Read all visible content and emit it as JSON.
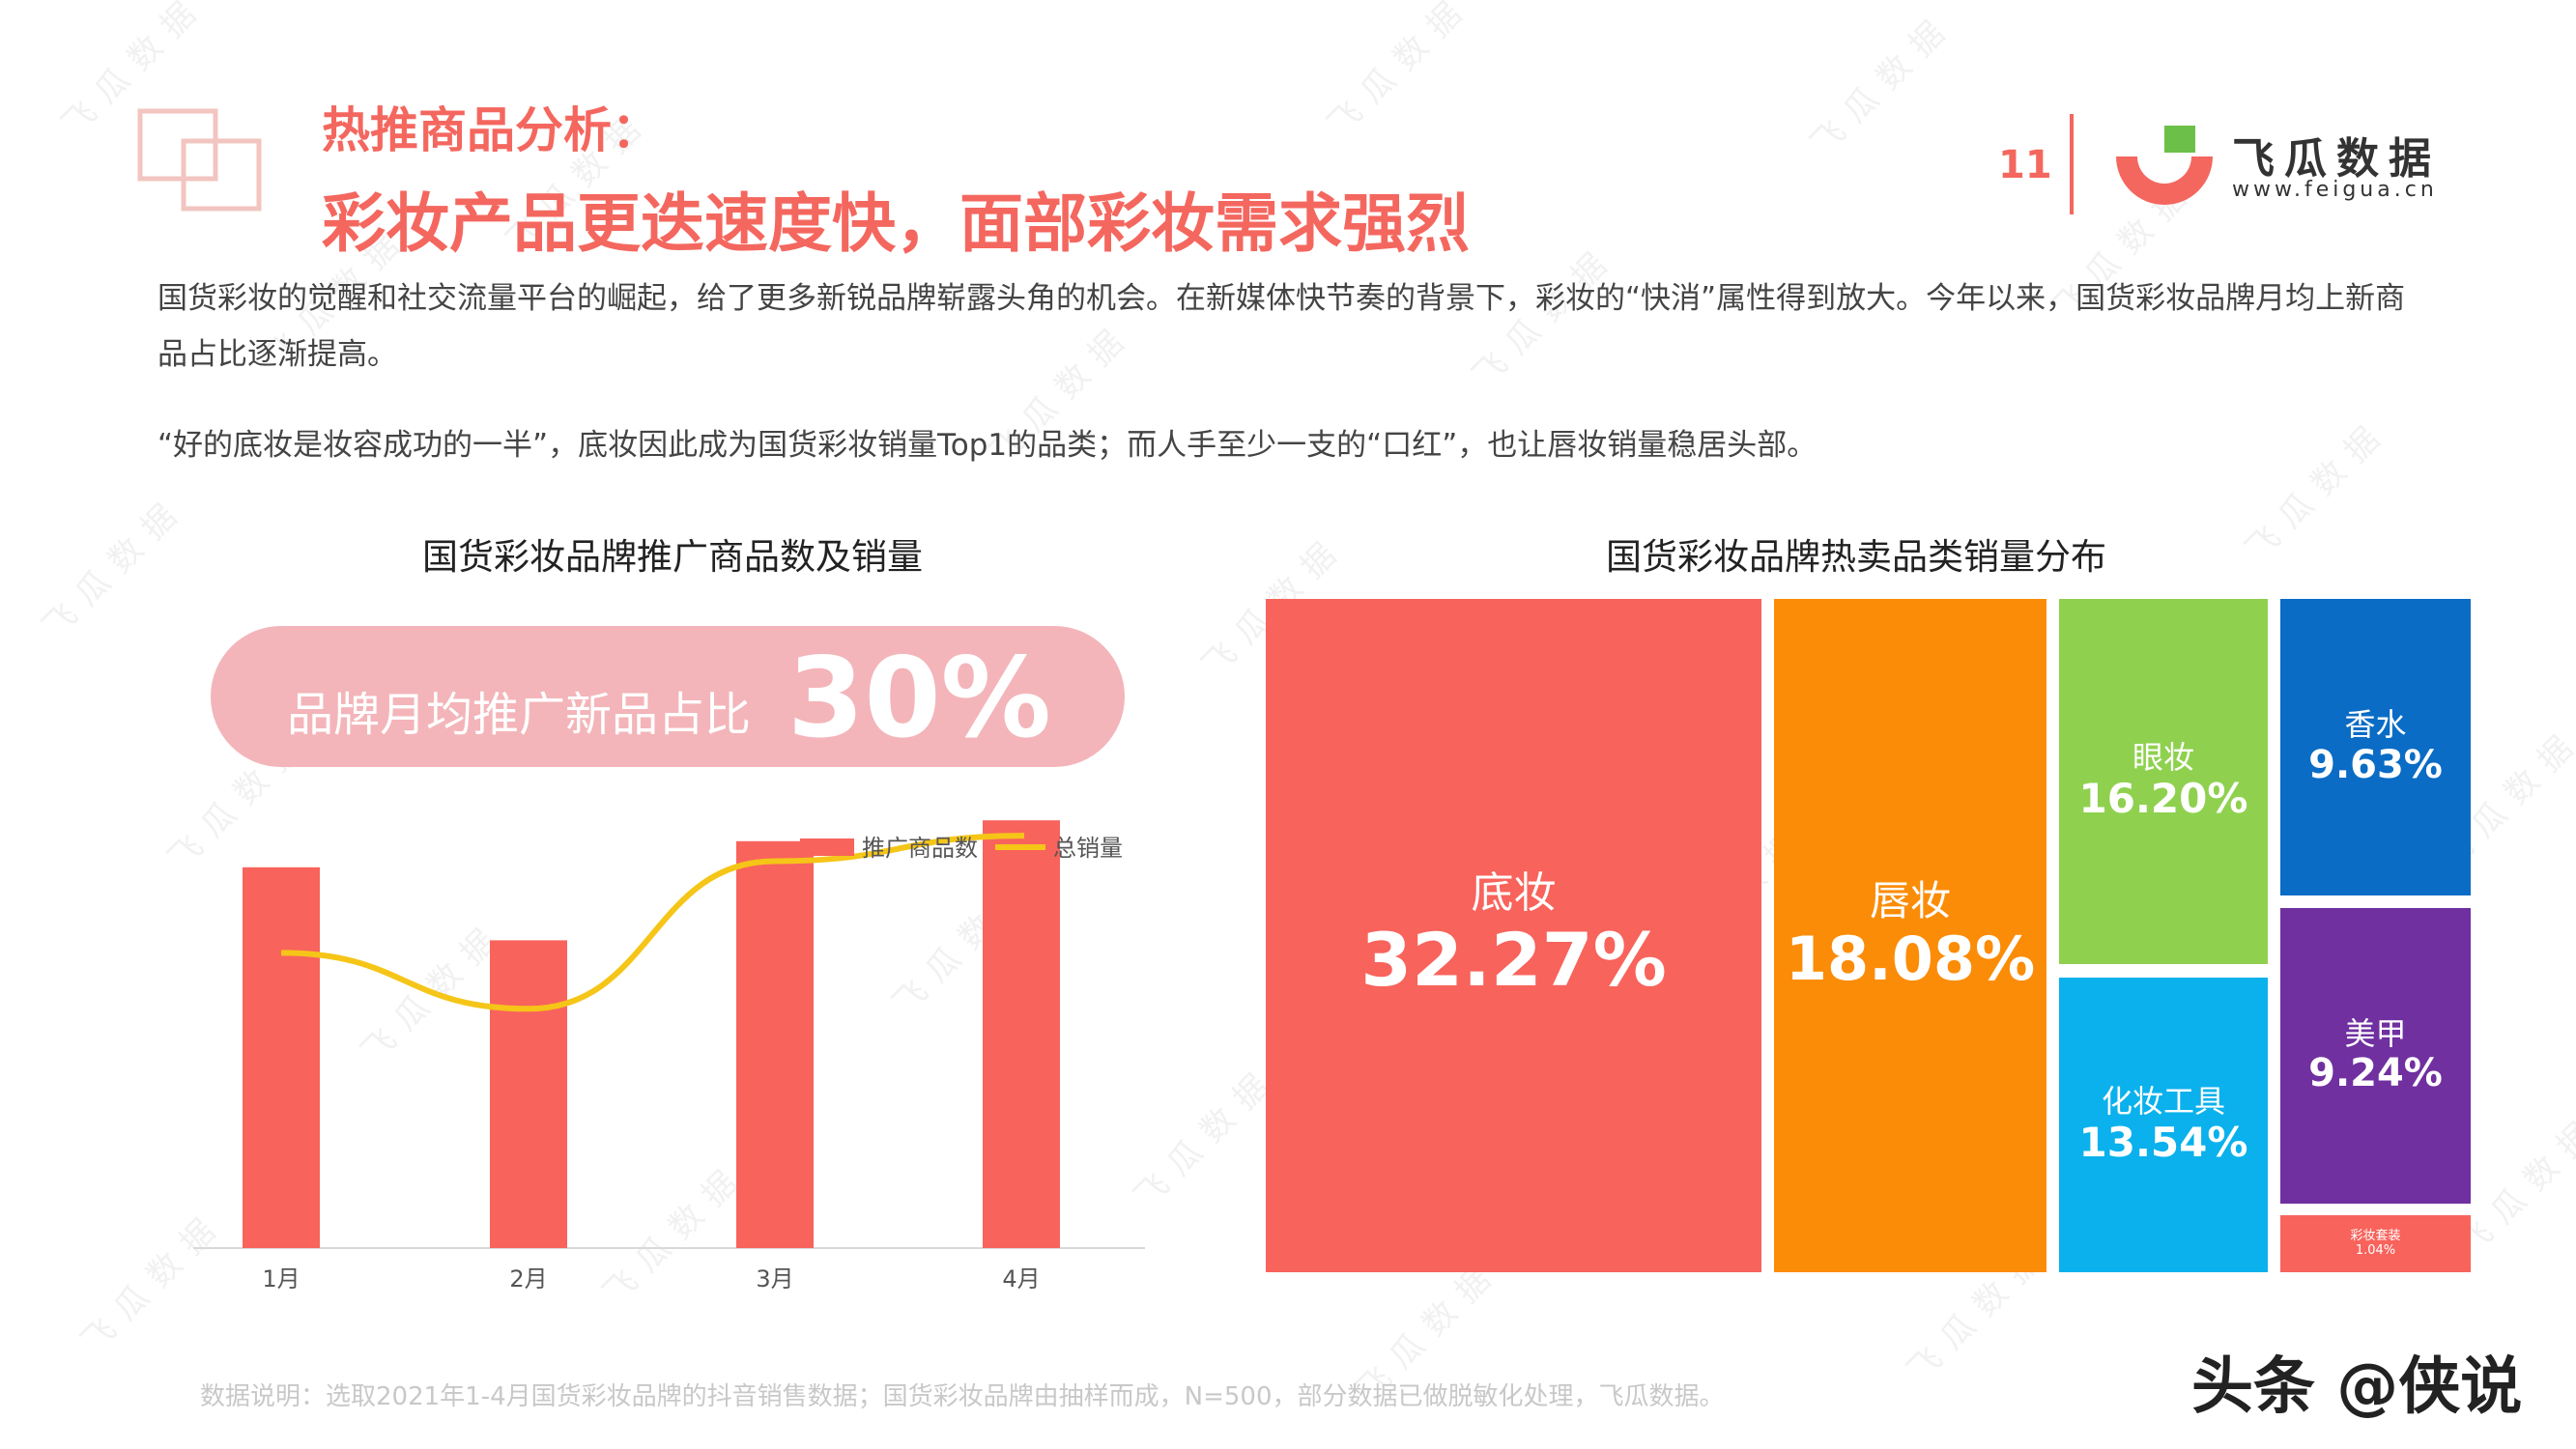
{
  "header": {
    "title_line1": "热推商品分析：",
    "title_line2": "彩妆产品更迭速度快，面部彩妆需求强烈",
    "page_number": "11",
    "brand_name": "飞瓜数据",
    "brand_url": "www.feigua.cn"
  },
  "watermark": "飞瓜数据",
  "intro": {
    "para1": "国货彩妆的觉醒和社交流量平台的崛起，给了更多新锐品牌崭露头角的机会。在新媒体快节奏的背景下，彩妆的“快消”属性得到放大。今年以来，国货彩妆品牌月均上新商品占比逐渐提高。",
    "para2": "“好的底妆是妆容成功的一半”，底妆因此成为国货彩妆销量Top1的品类；而人手至少一支的“口红”，也让唇妆销量稳居头部。"
  },
  "left_panel": {
    "subtitle": "国货彩妆品牌推广商品数及销量",
    "highlight_label": "品牌月均推广新品占比",
    "highlight_value": "30%"
  },
  "right_panel": {
    "subtitle": "国货彩妆品牌热卖品类销量分布"
  },
  "colors": {
    "accent": "#f4675f",
    "bar": "#f8635c",
    "line": "#f5c518",
    "pill": "#f3b5b9"
  },
  "chart_data": [
    {
      "type": "bar",
      "title": "国货彩妆品牌推广商品数及销量",
      "categories": [
        "1月",
        "2月",
        "3月",
        "4月"
      ],
      "series": [
        {
          "name": "推广商品数",
          "type": "bar",
          "values": [
            73,
            59,
            78,
            82
          ]
        },
        {
          "name": "总销量",
          "type": "line",
          "values": [
            58,
            47,
            76,
            81
          ]
        }
      ],
      "ylim": [
        0,
        100
      ],
      "legend": "top-right",
      "grid": false
    },
    {
      "type": "treemap",
      "title": "国货彩妆品牌热卖品类销量分布",
      "items": [
        {
          "name": "底妆",
          "value": 32.27,
          "label": "32.27%",
          "color": "#f8635c"
        },
        {
          "name": "唇妆",
          "value": 18.08,
          "label": "18.08%",
          "color": "#fb8c08"
        },
        {
          "name": "眼妆",
          "value": 16.2,
          "label": "16.20%",
          "color": "#8fd14f"
        },
        {
          "name": "化妆工具",
          "value": 13.54,
          "label": "13.54%",
          "color": "#0ab1ec"
        },
        {
          "name": "香水",
          "value": 9.63,
          "label": "9.63%",
          "color": "#0a6cc5"
        },
        {
          "name": "美甲",
          "value": 9.24,
          "label": "9.24%",
          "color": "#7030a0"
        },
        {
          "name": "彩妆套装",
          "value": 1.04,
          "label": "1.04%",
          "color": "#f8635c"
        }
      ]
    }
  ],
  "footer": {
    "note": "数据说明：选取2021年1-4月国货彩妆品牌的抖音销售数据；国货彩妆品牌由抽样而成，N=500，部分数据已做脱敏化处理，飞瓜数据。",
    "credit": "头条 @侠说"
  }
}
